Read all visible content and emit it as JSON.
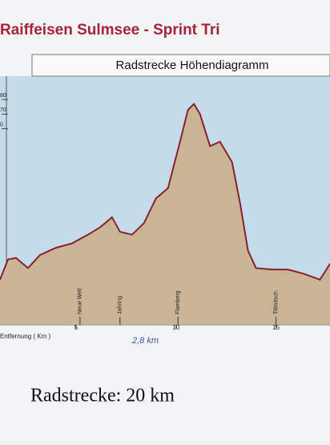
{
  "header": {
    "title": "Raiffeisen Sulmsee - Sprint Tri"
  },
  "chart_data": {
    "type": "area",
    "title": "Radstrecke Höhendiagramm",
    "x_label": "Entfernung ( Km )",
    "x": [
      1.2,
      1.6,
      2.0,
      2.6,
      3.2,
      4.0,
      4.8,
      5.6,
      6.2,
      6.8,
      7.2,
      7.8,
      8.4,
      9.0,
      9.6,
      10.2,
      10.6,
      10.9,
      11.2,
      11.7,
      12.2,
      12.8,
      13.2,
      13.6,
      14.0,
      14.8,
      15.6,
      16.4,
      17.2,
      17.7
    ],
    "values": [
      -44,
      -30,
      -29,
      -36,
      -27,
      -22,
      -19,
      -13,
      -8,
      -1,
      -11,
      -13,
      -5,
      12,
      19,
      51,
      73,
      77,
      70,
      48,
      51,
      37,
      9,
      -24,
      -36,
      -37,
      -37,
      -40,
      -44,
      -33
    ],
    "color": "#8b1f2e",
    "fill": "#c9b596",
    "xlim": [
      1.2,
      17.7
    ],
    "xticks": [
      5,
      10,
      15
    ],
    "ylim": [
      -75,
      95
    ],
    "yticks": [
      80,
      70,
      {
        "value": 60,
        "label": "0"
      }
    ],
    "annotations": [
      {
        "text": "Neue Welt",
        "x": 5.2
      },
      {
        "text": "Jahring",
        "x": 7.2
      },
      {
        "text": "Flamberg",
        "x": 10.1
      },
      {
        "text": "Tillmitsch",
        "x": 15
      }
    ]
  },
  "footer": {
    "note": "2,8 km",
    "caption": "Radstrecke: 20 km"
  }
}
